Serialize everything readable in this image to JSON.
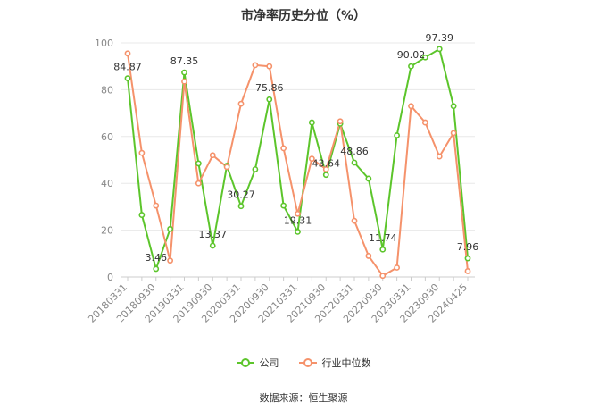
{
  "chart_data": {
    "type": "line",
    "title": "市净率历史分位（%）",
    "source": "数据来源：恒生聚源",
    "ylim": [
      0,
      100
    ],
    "yticks": [
      0,
      20,
      40,
      60,
      80,
      100
    ],
    "grid": true,
    "legend_position": "bottom",
    "x": [
      "20180331",
      "20180630",
      "20180930",
      "20181231",
      "20190331",
      "20190630",
      "20190930",
      "20191231",
      "20200331",
      "20200630",
      "20200930",
      "20201231",
      "20210331",
      "20210630",
      "20210930",
      "20211231",
      "20220331",
      "20220630",
      "20220930",
      "20221231",
      "20230331",
      "20230630",
      "20230930",
      "20231231",
      "20240425"
    ],
    "x_tick_labels": [
      "20180331",
      "20180930",
      "20190331",
      "20190930",
      "20200331",
      "20200930",
      "20210331",
      "20210930",
      "20220331",
      "20220930",
      "20230331",
      "20230930",
      "20240425"
    ],
    "series": [
      {
        "name": "公司",
        "color": "#5cc52b",
        "values": [
          84.87,
          26.5,
          3.46,
          20.5,
          87.35,
          48.5,
          13.37,
          47.5,
          30.27,
          46.0,
          75.86,
          30.5,
          19.31,
          66.0,
          43.64,
          65.5,
          48.86,
          42.0,
          11.74,
          60.5,
          90.02,
          93.8,
          97.39,
          73.0,
          7.96
        ],
        "labels": {
          "0": "84.87",
          "2": "3.46",
          "4": "87.35",
          "6": "13.37",
          "8": "30.27",
          "10": "75.86",
          "12": "19.31",
          "14": "43.64",
          "16": "48.86",
          "18": "11.74",
          "20": "90.02",
          "22": "97.39",
          "24": "7.96"
        }
      },
      {
        "name": "行业中位数",
        "color": "#f5926b",
        "values": [
          95.5,
          53.0,
          30.5,
          7.0,
          83.5,
          40.0,
          52.0,
          47.0,
          74.0,
          90.5,
          90.0,
          55.0,
          27.0,
          50.5,
          46.0,
          66.5,
          24.0,
          9.0,
          0.5,
          4.0,
          73.0,
          66.0,
          51.5,
          61.5,
          2.5
        ]
      }
    ]
  }
}
